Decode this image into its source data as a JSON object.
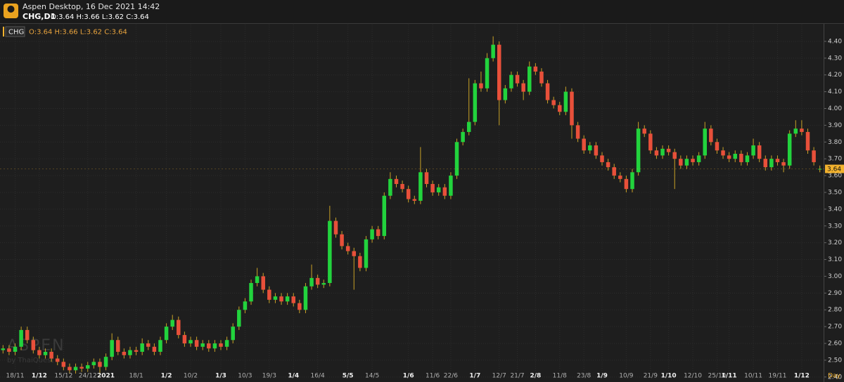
{
  "header": {
    "title": "Aspen Desktop, 16 Dec 2021 14:42",
    "symbol": "CHG,D1",
    "ohlc": "O:3.64 H:3.66 L:3.62 C:3.64",
    "watermark": "ASPEN",
    "watermark_sub": "by ThaiQuest"
  },
  "chart_data": {
    "type": "candlestick",
    "categories": [
      null,
      null,
      "18/11",
      null,
      null,
      null,
      "1/12",
      null,
      null,
      null,
      "15/12",
      null,
      null,
      null,
      "24/12",
      null,
      null,
      "2021",
      null,
      null,
      null,
      null,
      "18/1",
      null,
      null,
      null,
      null,
      "1/2",
      null,
      null,
      null,
      "10/2",
      null,
      null,
      null,
      null,
      "1/3",
      null,
      null,
      null,
      "10/3",
      null,
      null,
      null,
      "19/3",
      null,
      null,
      null,
      "1/4",
      null,
      null,
      null,
      "16/4",
      null,
      null,
      null,
      null,
      "5/5",
      null,
      null,
      null,
      "14/5",
      null,
      null,
      null,
      null,
      null,
      "1/6",
      null,
      null,
      null,
      "11/6",
      null,
      null,
      "22/6",
      null,
      null,
      null,
      "1/7",
      null,
      null,
      null,
      "12/7",
      null,
      null,
      "21/7",
      null,
      null,
      "2/8",
      null,
      null,
      null,
      "11/8",
      null,
      null,
      null,
      "23/8",
      null,
      null,
      "1/9",
      null,
      null,
      null,
      "10/9",
      null,
      null,
      null,
      "21/9",
      null,
      null,
      "1/10",
      null,
      null,
      null,
      "12/10",
      null,
      null,
      null,
      "25/10",
      null,
      "1/11",
      null,
      null,
      null,
      "10/11",
      null,
      null,
      null,
      "19/11",
      null,
      null,
      null,
      "1/12",
      null,
      null,
      null
    ],
    "x_unit": "Day",
    "series": [
      {
        "name": "CHG",
        "open": [
          2.56,
          2.57,
          2.55,
          2.58,
          2.68,
          2.62,
          2.56,
          2.53,
          2.55,
          2.51,
          2.49,
          2.46,
          2.44,
          2.46,
          2.45,
          2.47,
          2.49,
          2.46,
          2.52,
          2.62,
          2.55,
          2.53,
          2.56,
          2.55,
          2.6,
          2.58,
          2.55,
          2.62,
          2.7,
          2.74,
          2.65,
          2.6,
          2.62,
          2.58,
          2.6,
          2.57,
          2.6,
          2.58,
          2.62,
          2.7,
          2.8,
          2.85,
          2.96,
          3.0,
          2.92,
          2.86,
          2.88,
          2.85,
          2.88,
          2.84,
          2.8,
          2.94,
          2.99,
          2.95,
          2.96,
          3.33,
          3.25,
          3.18,
          3.15,
          3.12,
          3.05,
          3.22,
          3.28,
          3.24,
          3.48,
          3.58,
          3.55,
          3.52,
          3.46,
          3.45,
          3.62,
          3.55,
          3.5,
          3.53,
          3.48,
          3.6,
          3.8,
          3.86,
          3.92,
          4.15,
          4.12,
          4.3,
          4.38,
          4.05,
          4.12,
          4.2,
          4.15,
          4.1,
          4.25,
          4.22,
          4.15,
          4.05,
          4.02,
          3.98,
          4.1,
          3.9,
          3.82,
          3.75,
          3.78,
          3.72,
          3.68,
          3.65,
          3.6,
          3.58,
          3.52,
          3.62,
          3.88,
          3.85,
          3.75,
          3.72,
          3.76,
          3.74,
          3.7,
          3.66,
          3.7,
          3.68,
          3.72,
          3.88,
          3.8,
          3.75,
          3.72,
          3.7,
          3.73,
          3.68,
          3.72,
          3.78,
          3.7,
          3.65,
          3.7,
          3.68,
          3.66,
          3.85,
          3.88,
          3.86,
          3.75,
          3.64
        ],
        "high": [
          2.59,
          2.59,
          2.6,
          2.7,
          2.7,
          2.64,
          2.58,
          2.57,
          2.57,
          2.53,
          2.51,
          2.48,
          2.48,
          2.48,
          2.49,
          2.51,
          2.51,
          2.54,
          2.66,
          2.64,
          2.57,
          2.58,
          2.58,
          2.63,
          2.62,
          2.6,
          2.64,
          2.72,
          2.77,
          2.76,
          2.67,
          2.64,
          2.64,
          2.62,
          2.62,
          2.62,
          2.62,
          2.64,
          2.72,
          2.82,
          2.87,
          2.98,
          3.05,
          3.02,
          2.94,
          2.9,
          2.9,
          2.9,
          2.9,
          2.86,
          2.96,
          3.07,
          3.01,
          2.98,
          3.42,
          3.35,
          3.27,
          3.2,
          3.17,
          3.14,
          3.24,
          3.3,
          3.3,
          3.5,
          3.62,
          3.6,
          3.57,
          3.54,
          3.48,
          3.77,
          3.64,
          3.57,
          3.55,
          3.55,
          3.62,
          3.82,
          3.88,
          4.18,
          4.17,
          4.22,
          4.33,
          4.43,
          4.4,
          4.14,
          4.22,
          4.22,
          4.17,
          4.28,
          4.27,
          4.24,
          4.17,
          4.07,
          4.04,
          4.13,
          4.12,
          3.92,
          3.84,
          3.8,
          3.8,
          3.74,
          3.7,
          3.67,
          3.62,
          3.6,
          3.64,
          3.92,
          3.9,
          3.87,
          3.77,
          3.78,
          3.78,
          3.76,
          3.72,
          3.72,
          3.72,
          3.74,
          3.92,
          3.9,
          3.82,
          3.77,
          3.74,
          3.75,
          3.75,
          3.74,
          3.82,
          3.8,
          3.72,
          3.72,
          3.72,
          3.7,
          3.87,
          3.93,
          3.93,
          3.88,
          3.77,
          3.66
        ],
        "low": [
          2.54,
          2.53,
          2.53,
          2.56,
          2.6,
          2.54,
          2.51,
          2.51,
          2.49,
          2.47,
          2.44,
          2.42,
          2.42,
          2.43,
          2.43,
          2.45,
          2.41,
          2.44,
          2.5,
          2.53,
          2.51,
          2.51,
          2.53,
          2.53,
          2.56,
          2.53,
          2.53,
          2.6,
          2.68,
          2.63,
          2.58,
          2.58,
          2.56,
          2.56,
          2.55,
          2.55,
          2.56,
          2.56,
          2.6,
          2.68,
          2.78,
          2.83,
          2.94,
          2.9,
          2.84,
          2.84,
          2.83,
          2.83,
          2.82,
          2.78,
          2.78,
          2.92,
          2.93,
          2.93,
          2.94,
          3.23,
          3.16,
          3.13,
          2.92,
          3.03,
          3.03,
          3.2,
          3.22,
          3.22,
          3.46,
          3.53,
          3.5,
          3.44,
          3.43,
          3.43,
          3.53,
          3.48,
          3.48,
          3.46,
          3.46,
          3.58,
          3.78,
          3.84,
          3.9,
          4.1,
          4.1,
          4.28,
          3.9,
          4.03,
          4.1,
          4.13,
          4.05,
          4.08,
          4.2,
          4.13,
          4.03,
          4.0,
          3.96,
          3.96,
          3.82,
          3.8,
          3.73,
          3.73,
          3.7,
          3.66,
          3.63,
          3.58,
          3.56,
          3.5,
          3.5,
          3.6,
          3.83,
          3.73,
          3.7,
          3.7,
          3.72,
          3.52,
          3.64,
          3.64,
          3.66,
          3.66,
          3.7,
          3.78,
          3.73,
          3.7,
          3.68,
          3.68,
          3.66,
          3.66,
          3.7,
          3.68,
          3.63,
          3.63,
          3.66,
          3.62,
          3.64,
          3.83,
          3.84,
          3.73,
          3.66,
          3.62
        ],
        "close": [
          2.57,
          2.55,
          2.58,
          2.68,
          2.62,
          2.56,
          2.53,
          2.55,
          2.51,
          2.49,
          2.46,
          2.44,
          2.46,
          2.45,
          2.47,
          2.49,
          2.46,
          2.52,
          2.62,
          2.55,
          2.53,
          2.56,
          2.55,
          2.6,
          2.58,
          2.55,
          2.62,
          2.7,
          2.74,
          2.65,
          2.6,
          2.62,
          2.58,
          2.6,
          2.57,
          2.6,
          2.58,
          2.62,
          2.7,
          2.8,
          2.85,
          2.96,
          3.0,
          2.92,
          2.86,
          2.88,
          2.85,
          2.88,
          2.84,
          2.8,
          2.94,
          2.99,
          2.95,
          2.96,
          3.33,
          3.25,
          3.18,
          3.15,
          3.12,
          3.05,
          3.22,
          3.28,
          3.24,
          3.48,
          3.58,
          3.55,
          3.52,
          3.46,
          3.45,
          3.62,
          3.55,
          3.5,
          3.53,
          3.48,
          3.6,
          3.8,
          3.86,
          3.92,
          4.15,
          4.12,
          4.3,
          4.38,
          4.05,
          4.12,
          4.2,
          4.15,
          4.1,
          4.25,
          4.22,
          4.15,
          4.05,
          4.02,
          3.98,
          4.1,
          3.9,
          3.82,
          3.75,
          3.78,
          3.72,
          3.68,
          3.65,
          3.6,
          3.58,
          3.52,
          3.62,
          3.88,
          3.85,
          3.75,
          3.72,
          3.76,
          3.74,
          3.7,
          3.66,
          3.7,
          3.68,
          3.72,
          3.88,
          3.8,
          3.75,
          3.72,
          3.7,
          3.73,
          3.68,
          3.72,
          3.78,
          3.7,
          3.65,
          3.7,
          3.68,
          3.66,
          3.85,
          3.88,
          3.86,
          3.75,
          3.68,
          3.64
        ]
      }
    ],
    "up_color": "#22d33d",
    "down_color": "#e8503a",
    "wick_color": "#c9a227",
    "last_price": 3.64,
    "last_price_color": "#f2b22e",
    "ylim": [
      2.37,
      4.5
    ],
    "yticks": [
      {
        "value": 2.4,
        "label": "2.40"
      },
      {
        "value": 2.5,
        "label": "2.50"
      },
      {
        "value": 2.6,
        "label": "2.60"
      },
      {
        "value": 2.7,
        "label": "2.70"
      },
      {
        "value": 2.8,
        "label": "2.80"
      },
      {
        "value": 2.9,
        "label": "2.90"
      },
      {
        "value": 3,
        "label": "3.00"
      },
      {
        "value": 3.1,
        "label": "3.10"
      },
      {
        "value": 3.2,
        "label": "3.20"
      },
      {
        "value": 3.3,
        "label": "3.30"
      },
      {
        "value": 3.4,
        "label": "3.40"
      },
      {
        "value": 3.5,
        "label": "3.50"
      },
      {
        "value": 3.6,
        "label": "3.60"
      },
      {
        "value": 3.7,
        "label": "3.70"
      },
      {
        "value": 3.8,
        "label": "3.80"
      },
      {
        "value": 3.9,
        "label": "3.90"
      },
      {
        "value": 4,
        "label": "4.00"
      },
      {
        "value": 4.1,
        "label": "4.10"
      },
      {
        "value": 4.2,
        "label": "4.20"
      },
      {
        "value": 4.3,
        "label": "4.30"
      },
      {
        "value": 4.4,
        "label": "4.40"
      }
    ],
    "grid": true
  }
}
